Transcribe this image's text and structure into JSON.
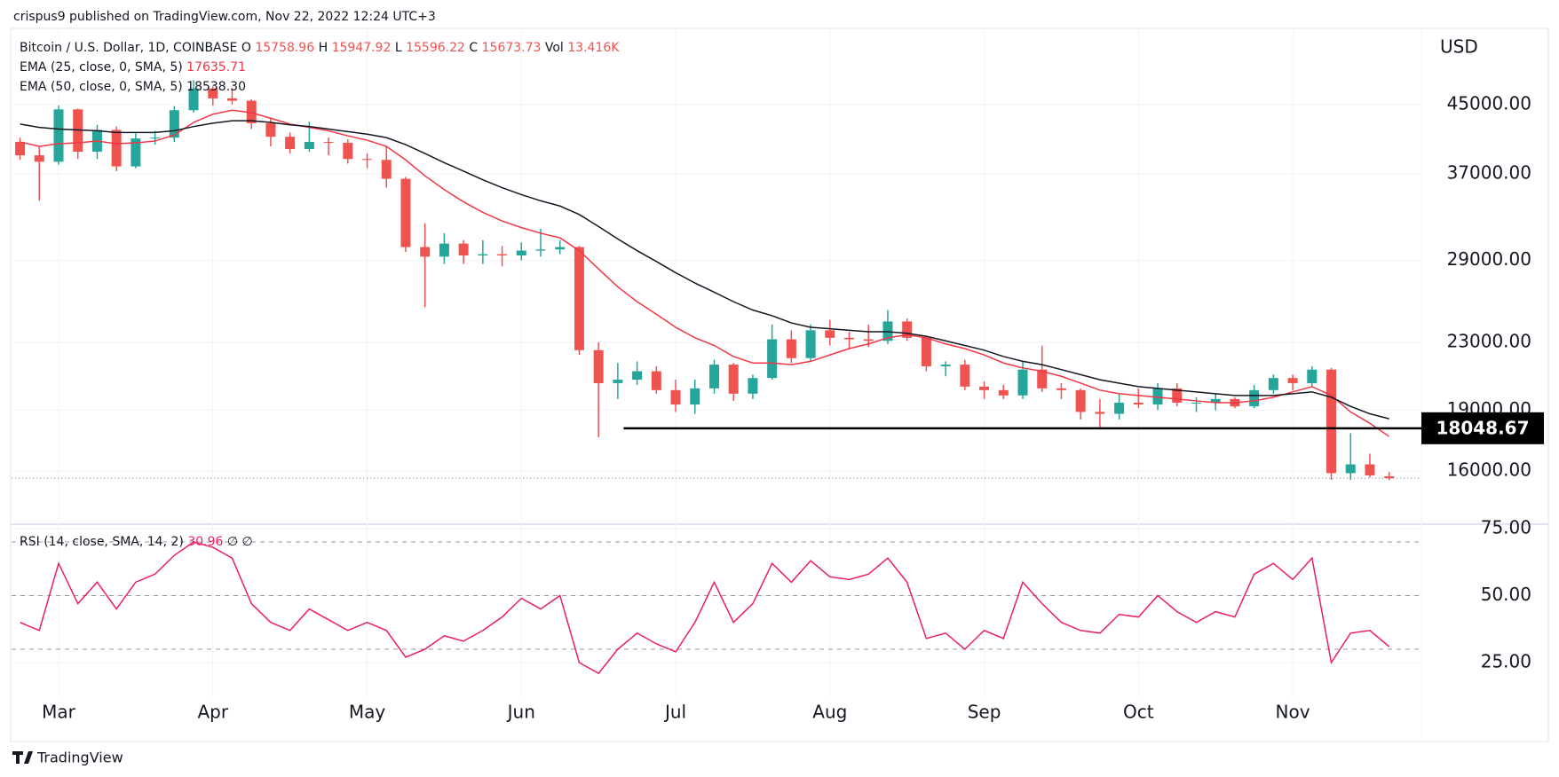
{
  "header": {
    "published": "crispus9 published on TradingView.com, Nov 22, 2022 12:24 UTC+3"
  },
  "footer": {
    "brand": "TradingView"
  },
  "chart_data": [
    {
      "type": "candlestick",
      "title": "Bitcoin / U.S. Dollar, 1D, COINBASE",
      "ohlc_prefixes": [
        "O",
        "H",
        "L",
        "C"
      ],
      "volume_prefix": "Vol",
      "volume": "13.416K",
      "axis_label": "USD",
      "log_scale": true,
      "grid": true,
      "up_color": "#26a69a",
      "down_color": "#ef5350",
      "categories": [
        null,
        null,
        "Mar",
        null,
        null,
        null,
        null,
        null,
        null,
        null,
        "Apr",
        null,
        null,
        null,
        null,
        null,
        null,
        null,
        "May",
        null,
        null,
        null,
        null,
        null,
        null,
        null,
        "Jun",
        null,
        null,
        null,
        null,
        null,
        null,
        null,
        "Jul",
        null,
        null,
        null,
        null,
        null,
        null,
        null,
        "Aug",
        null,
        null,
        null,
        null,
        null,
        null,
        null,
        "Sep",
        null,
        null,
        null,
        null,
        null,
        null,
        null,
        "Oct",
        null,
        null,
        null,
        null,
        null,
        null,
        null,
        "Nov",
        null,
        null,
        null,
        null,
        null
      ],
      "open": [
        40500,
        39000,
        38300,
        44400,
        39400,
        41900,
        37800,
        40900,
        41000,
        44300,
        47100,
        45800,
        45500,
        42700,
        41100,
        39700,
        40500,
        40400,
        38600,
        38500,
        36500,
        30100,
        29300,
        30400,
        29400,
        29500,
        29400,
        29800,
        29900,
        30100,
        22500,
        20500,
        20700,
        21200,
        20100,
        19300,
        20200,
        21600,
        19900,
        20800,
        23200,
        22000,
        23800,
        23300,
        23200,
        23100,
        24400,
        23300,
        21500,
        21600,
        20300,
        20100,
        19800,
        21300,
        20200,
        20100,
        18900,
        18800,
        19400,
        19300,
        20200,
        19400,
        19400,
        19600,
        19200,
        20100,
        20800,
        20500,
        21300,
        15900,
        16300,
        15758.96
      ],
      "high": [
        41000,
        40000,
        44900,
        44500,
        42500,
        42300,
        41500,
        41800,
        44800,
        48200,
        47400,
        47200,
        45700,
        43400,
        41600,
        42900,
        41000,
        40800,
        39200,
        40000,
        36700,
        32200,
        31300,
        30700,
        30700,
        30200,
        30500,
        31700,
        30700,
        30200,
        23000,
        21700,
        21800,
        21500,
        20700,
        20700,
        21900,
        21700,
        21000,
        24200,
        23800,
        24200,
        24500,
        23700,
        24200,
        25200,
        24600,
        23400,
        21800,
        21900,
        20600,
        20400,
        21800,
        22800,
        20500,
        20200,
        19600,
        19900,
        20200,
        20500,
        20500,
        19700,
        19900,
        19700,
        20400,
        21000,
        21000,
        21500,
        21400,
        17800,
        16800,
        15947.92
      ],
      "low": [
        38500,
        34300,
        38000,
        38600,
        38600,
        37300,
        37600,
        40200,
        40500,
        44000,
        44900,
        45000,
        42000,
        40000,
        39200,
        39400,
        39000,
        38100,
        37600,
        35600,
        29700,
        25400,
        28700,
        28700,
        28700,
        28500,
        29000,
        29300,
        29500,
        22200,
        17600,
        19600,
        20400,
        19900,
        18900,
        18800,
        19900,
        19500,
        19600,
        20700,
        21700,
        21800,
        22800,
        22600,
        22700,
        22900,
        23100,
        21200,
        20900,
        20100,
        19600,
        19600,
        19600,
        20000,
        19600,
        18500,
        18100,
        18500,
        19100,
        19000,
        19200,
        18900,
        19000,
        19100,
        19100,
        19900,
        20100,
        20300,
        15600,
        15600,
        15700,
        15596.22
      ],
      "close": [
        39000,
        38300,
        44400,
        39400,
        41900,
        37800,
        40900,
        41000,
        44300,
        47100,
        45800,
        45500,
        42700,
        41100,
        39700,
        40500,
        40400,
        38600,
        38500,
        36500,
        30100,
        29300,
        30400,
        29400,
        29500,
        29400,
        29800,
        29900,
        30100,
        22500,
        20500,
        20700,
        21200,
        20100,
        19300,
        20200,
        21600,
        19900,
        20800,
        23200,
        22000,
        23800,
        23300,
        23200,
        23100,
        24400,
        23300,
        21500,
        21600,
        20300,
        20100,
        19800,
        21300,
        20200,
        20100,
        18900,
        18800,
        19400,
        19300,
        20200,
        19400,
        19400,
        19600,
        19200,
        20100,
        20800,
        20500,
        21300,
        15900,
        16300,
        15800,
        15673.73
      ],
      "series": [
        {
          "name": "EMA (25, close, 0, SMA, 5)",
          "color": "#f23645",
          "values": [
            40500,
            40000,
            40300,
            40400,
            40600,
            40300,
            40400,
            40600,
            41300,
            42800,
            43800,
            44300,
            44000,
            43300,
            42600,
            42200,
            41800,
            41200,
            40700,
            40000,
            38500,
            36800,
            35400,
            34200,
            33200,
            32400,
            31800,
            31300,
            30900,
            29800,
            28300,
            26900,
            25800,
            24900,
            24000,
            23300,
            22800,
            22100,
            21700,
            21700,
            21600,
            21800,
            22200,
            22600,
            22900,
            23300,
            23500,
            23300,
            22900,
            22600,
            22200,
            21700,
            21400,
            21200,
            20900,
            20500,
            20100,
            19900,
            19800,
            19700,
            19600,
            19500,
            19400,
            19400,
            19500,
            19700,
            20000,
            20300,
            19800,
            18900,
            18300,
            17635.71
          ]
        },
        {
          "name": "EMA (50, close, 0, SMA, 5)",
          "color": "#131722",
          "values": [
            42600,
            42200,
            42000,
            41900,
            41800,
            41600,
            41600,
            41600,
            41800,
            42300,
            42700,
            43000,
            43000,
            42800,
            42500,
            42300,
            42000,
            41700,
            41400,
            41000,
            40200,
            39200,
            38200,
            37300,
            36400,
            35600,
            34900,
            34300,
            33800,
            33000,
            31900,
            30800,
            29800,
            28900,
            28000,
            27200,
            26500,
            25800,
            25200,
            24800,
            24300,
            24000,
            23900,
            23800,
            23700,
            23700,
            23600,
            23400,
            23100,
            22800,
            22500,
            22100,
            21800,
            21600,
            21300,
            21000,
            20700,
            20500,
            20300,
            20200,
            20100,
            20000,
            19900,
            19800,
            19800,
            19800,
            19900,
            20000,
            19700,
            19200,
            18800,
            18538.3
          ],
          "value_labels": [
            null,
            null,
            null,
            null,
            null,
            null,
            null,
            null,
            null,
            null,
            null,
            null,
            null,
            null,
            null,
            null,
            null,
            null,
            null,
            null,
            null,
            null,
            null,
            null,
            null,
            null,
            null,
            null,
            null,
            null,
            null,
            null,
            null,
            null,
            null,
            null,
            null,
            null,
            null,
            null,
            null,
            null,
            null,
            null,
            null,
            null,
            null,
            null,
            null,
            null,
            null,
            null,
            null,
            null,
            null,
            null,
            null,
            null,
            null,
            null,
            null,
            null,
            null,
            null,
            null,
            null,
            null,
            null,
            null,
            null,
            null,
            "18538.30"
          ]
        }
      ],
      "horizontal_line": {
        "value": 18048.67,
        "color": "#000000"
      },
      "ylim": [
        13835,
        55530
      ],
      "yticks": [
        {
          "value": 16000,
          "label": "16000.00"
        },
        {
          "value": 19000,
          "label": "19000.00"
        },
        {
          "value": 23000,
          "label": "23000.00"
        },
        {
          "value": 29000,
          "label": "29000.00"
        },
        {
          "value": 37000,
          "label": "37000.00"
        },
        {
          "value": 45000,
          "label": "45000.00"
        }
      ]
    },
    {
      "type": "line",
      "grid": true,
      "series": [
        {
          "name": "RSI (14, close, SMA, 14, 2)",
          "color": "#e91e63",
          "values": [
            40,
            37,
            62,
            47,
            55,
            45,
            55,
            58,
            65,
            70,
            68,
            64,
            47,
            40,
            37,
            45,
            41,
            37,
            40,
            37,
            27,
            30,
            35,
            33,
            37,
            42,
            49,
            45,
            50,
            25,
            21,
            30,
            36,
            32,
            29,
            40,
            55,
            40,
            47,
            62,
            55,
            63,
            57,
            56,
            58,
            64,
            55,
            34,
            36,
            30,
            37,
            34,
            55,
            47,
            40,
            37,
            36,
            43,
            42,
            50,
            44,
            40,
            44,
            42,
            58,
            62,
            56,
            64,
            25,
            36,
            37,
            30.96
          ]
        }
      ],
      "na_marks": [
        "∅",
        "∅"
      ],
      "band_lines": [
        70,
        50,
        30
      ],
      "ylim": [
        12.1,
        76.3
      ],
      "yticks": [
        {
          "value": 75,
          "label": "75.00"
        },
        {
          "value": 50,
          "label": "50.00"
        },
        {
          "value": 25,
          "label": "25.00"
        }
      ]
    }
  ]
}
